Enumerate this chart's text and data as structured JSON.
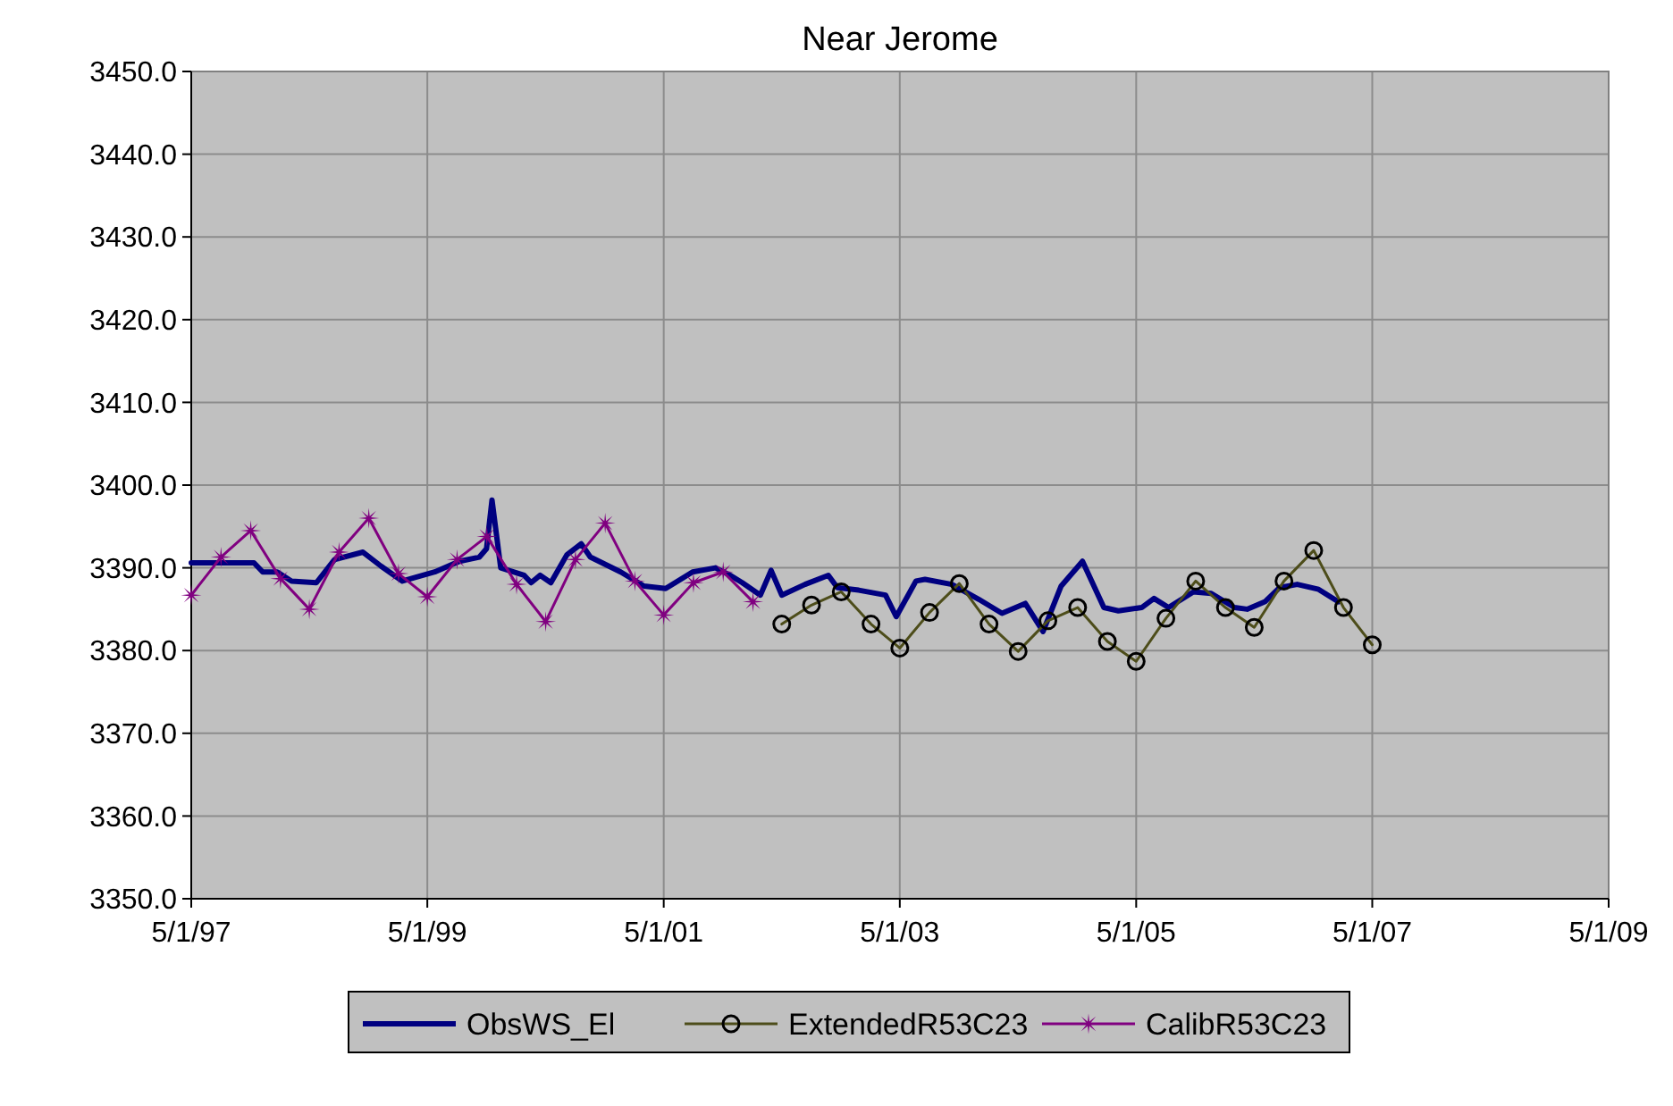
{
  "chart_data": {
    "type": "line",
    "title": "Near Jerome",
    "xlim": [
      "1997-05-01",
      "2009-05-01"
    ],
    "xticks": [
      {
        "value": "1997-05-01",
        "label": "5/1/97"
      },
      {
        "value": "1999-05-01",
        "label": "5/1/99"
      },
      {
        "value": "2001-05-01",
        "label": "5/1/01"
      },
      {
        "value": "2003-05-01",
        "label": "5/1/03"
      },
      {
        "value": "2005-05-01",
        "label": "5/1/05"
      },
      {
        "value": "2007-05-01",
        "label": "5/1/07"
      },
      {
        "value": "2009-05-01",
        "label": "5/1/09"
      }
    ],
    "ylim": [
      3350,
      3450
    ],
    "yticks": [
      {
        "value": 3350,
        "label": "3350.0"
      },
      {
        "value": 3360,
        "label": "3360.0"
      },
      {
        "value": 3370,
        "label": "3370.0"
      },
      {
        "value": 3380,
        "label": "3380.0"
      },
      {
        "value": 3390,
        "label": "3390.0"
      },
      {
        "value": 3400,
        "label": "3400.0"
      },
      {
        "value": 3410,
        "label": "3410.0"
      },
      {
        "value": 3420,
        "label": "3420.0"
      },
      {
        "value": 3430,
        "label": "3430.0"
      },
      {
        "value": 3440,
        "label": "3440.0"
      },
      {
        "value": 3450,
        "label": "3450.0"
      }
    ],
    "grid": true,
    "legend": "bottom",
    "series": [
      {
        "name": "ObsWS_El",
        "color": "#000080",
        "marker": "none",
        "x": [
          "1997-05-01",
          "1997-11-11",
          "1997-12-08",
          "1998-01-22",
          "1998-03-07",
          "1998-05-23",
          "1998-07-18",
          "1998-10-14",
          "1998-12-09",
          "1999-02-13",
          "1999-05-24",
          "1999-08-09",
          "1999-10-09",
          "1999-10-31",
          "1999-11-17",
          "1999-12-14",
          "2000-02-24",
          "2000-03-17",
          "2000-04-14",
          "2000-05-17",
          "2000-07-06",
          "2000-08-19",
          "2000-09-16",
          "2000-12-19",
          "2001-03-01",
          "2001-05-07",
          "2001-07-29",
          "2001-10-08",
          "2001-11-22",
          "2001-12-30",
          "2002-02-24",
          "2002-03-29",
          "2002-05-01",
          "2002-07-12",
          "2002-09-22",
          "2002-10-20",
          "2002-12-25",
          "2003-03-18",
          "2003-04-20",
          "2003-06-20",
          "2003-07-18",
          "2003-10-09",
          "2003-12-31",
          "2004-03-12",
          "2004-05-23",
          "2004-07-17",
          "2004-09-11",
          "2004-11-16",
          "2005-01-21",
          "2005-03-07",
          "2005-05-18",
          "2005-06-25",
          "2005-08-09",
          "2005-10-25",
          "2005-12-19",
          "2006-03-01",
          "2006-04-09",
          "2006-06-03",
          "2006-07-18",
          "2006-09-11",
          "2006-11-16",
          "2007-01-16"
        ],
        "values": [
          3390.6,
          3390.6,
          3389.5,
          3389.5,
          3388.4,
          3388.2,
          3391.0,
          3391.9,
          3390.2,
          3388.4,
          3389.5,
          3390.8,
          3391.3,
          3392.3,
          3398.2,
          3390.0,
          3389.1,
          3388.2,
          3389.1,
          3388.2,
          3391.6,
          3392.9,
          3391.3,
          3389.5,
          3387.8,
          3387.5,
          3389.5,
          3390.0,
          3389.1,
          3388.2,
          3386.7,
          3389.7,
          3386.7,
          3388.0,
          3389.1,
          3387.6,
          3387.3,
          3386.7,
          3384.1,
          3388.4,
          3388.6,
          3388.0,
          3386.2,
          3384.5,
          3385.7,
          3382.3,
          3387.8,
          3390.8,
          3385.2,
          3384.8,
          3385.2,
          3386.3,
          3385.2,
          3387.1,
          3386.9,
          3385.2,
          3385.0,
          3385.9,
          3387.6,
          3388.0,
          3387.4,
          3385.9
        ]
      },
      {
        "name": "ExtendedR53C23",
        "color": "#4d4d1a",
        "marker": "circle",
        "x": [
          "2002-05-01",
          "2002-08-01",
          "2002-11-01",
          "2003-02-01",
          "2003-05-01",
          "2003-08-01",
          "2003-11-01",
          "2004-02-01",
          "2004-05-01",
          "2004-08-01",
          "2004-11-01",
          "2005-02-01",
          "2005-05-01",
          "2005-08-01",
          "2005-11-01",
          "2006-02-01",
          "2006-05-01",
          "2006-08-01",
          "2006-11-01",
          "2007-02-01",
          "2007-05-01"
        ],
        "values": [
          3383.2,
          3385.5,
          3387.1,
          3383.2,
          3380.3,
          3384.6,
          3388.1,
          3383.2,
          3379.9,
          3383.6,
          3385.2,
          3381.1,
          3378.7,
          3383.9,
          3388.4,
          3385.2,
          3382.8,
          3388.4,
          3392.1,
          3385.2,
          3380.7
        ]
      },
      {
        "name": "CalibR53C23",
        "color": "#800080",
        "marker": "star",
        "x": [
          "1997-05-01",
          "1997-08-01",
          "1997-11-01",
          "1998-02-01",
          "1998-05-01",
          "1998-08-01",
          "1998-11-01",
          "1999-02-01",
          "1999-05-01",
          "1999-08-01",
          "1999-11-01",
          "2000-02-01",
          "2000-05-01",
          "2000-08-01",
          "2000-11-01",
          "2001-02-01",
          "2001-05-01",
          "2001-08-01",
          "2001-11-01",
          "2002-02-01"
        ],
        "values": [
          3386.7,
          3391.3,
          3394.5,
          3388.7,
          3385.0,
          3391.9,
          3396.0,
          3389.3,
          3386.5,
          3391.0,
          3393.8,
          3388.0,
          3383.5,
          3391.0,
          3395.4,
          3388.4,
          3384.3,
          3388.2,
          3389.5,
          3385.9
        ]
      }
    ]
  }
}
